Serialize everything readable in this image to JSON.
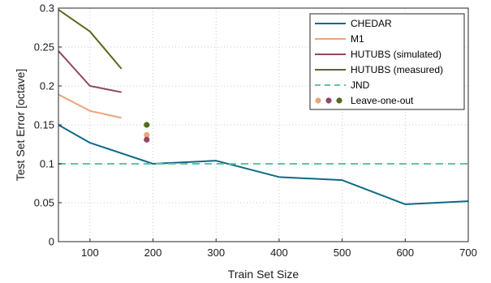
{
  "chart_data": {
    "type": "line",
    "xlabel": "Train Set Size",
    "ylabel": "Test Set Error [octave]",
    "xlim": [
      50,
      700
    ],
    "ylim": [
      0,
      0.3
    ],
    "xticks": [
      100,
      200,
      300,
      400,
      500,
      600,
      700
    ],
    "yticks": [
      0,
      0.05,
      0.1,
      0.15,
      0.2,
      0.25,
      0.3
    ],
    "xtick_labels": [
      "100",
      "200",
      "300",
      "400",
      "500",
      "600",
      "700"
    ],
    "ytick_labels": [
      "0",
      "0.05",
      "0.1",
      "0.15",
      "0.2",
      "0.25",
      "0.3"
    ],
    "grid": true,
    "legend_position": "top-right",
    "series": [
      {
        "name": "CHEDAR",
        "color": "#0d6a86",
        "style": "solid",
        "x": [
          50,
          100,
          200,
          300,
          400,
          500,
          600,
          700
        ],
        "y": [
          0.15,
          0.127,
          0.1,
          0.104,
          0.083,
          0.079,
          0.048,
          0.052
        ]
      },
      {
        "name": "M1",
        "color": "#eba57b",
        "style": "solid",
        "x": [
          50,
          100,
          150
        ],
        "y": [
          0.189,
          0.168,
          0.159
        ]
      },
      {
        "name": "HUTUBS (simulated)",
        "color": "#934565",
        "style": "solid",
        "x": [
          50,
          100,
          150
        ],
        "y": [
          0.245,
          0.2,
          0.192
        ]
      },
      {
        "name": "HUTUBS (measured)",
        "color": "#556b1b",
        "style": "solid",
        "x": [
          50,
          100,
          150
        ],
        "y": [
          0.298,
          0.27,
          0.222
        ]
      },
      {
        "name": "JND",
        "color": "#66c0a6",
        "style": "dashed",
        "x": [
          50,
          700
        ],
        "y": [
          0.1,
          0.1
        ]
      }
    ],
    "scatter": {
      "name": "Leave-one-out",
      "points": [
        {
          "x": 190,
          "y": 0.15,
          "color": "#556b1b"
        },
        {
          "x": 190,
          "y": 0.137,
          "color": "#eba57b"
        },
        {
          "x": 190,
          "y": 0.131,
          "color": "#934565"
        }
      ]
    }
  }
}
